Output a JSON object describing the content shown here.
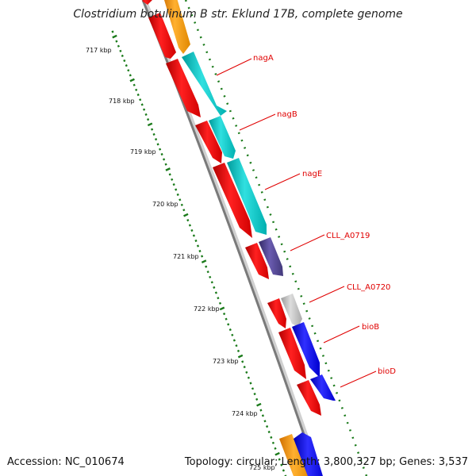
{
  "title": "Clostridium botulinum B str. Eklund 17B, complete genome",
  "footer": {
    "accession": "Accession: NC_010674",
    "summary": "Topology: circular; Length: 3,800,327 bp; Genes: 3,537"
  },
  "ruler": {
    "ticks": [
      "717 kbp",
      "718 kbp",
      "719 kbp",
      "720 kbp",
      "721 kbp",
      "722 kbp",
      "723 kbp",
      "724 kbp",
      "725 kbp"
    ]
  },
  "colors": {
    "cds": "#ff0000",
    "orange": "#ff9900",
    "cyan": "#00cccc",
    "purple": "#4b3f8c",
    "gray": "#bbbbbb",
    "blue": "#0000ff",
    "backbone": "#888888",
    "tick": "#1a7a1a",
    "label": "#e00000"
  },
  "genes": [
    {
      "name": "nagA"
    },
    {
      "name": "nagB"
    },
    {
      "name": "nagE"
    },
    {
      "name": "CLL_A0719"
    },
    {
      "name": "CLL_A0720"
    },
    {
      "name": "bioB"
    },
    {
      "name": "bioD"
    }
  ]
}
